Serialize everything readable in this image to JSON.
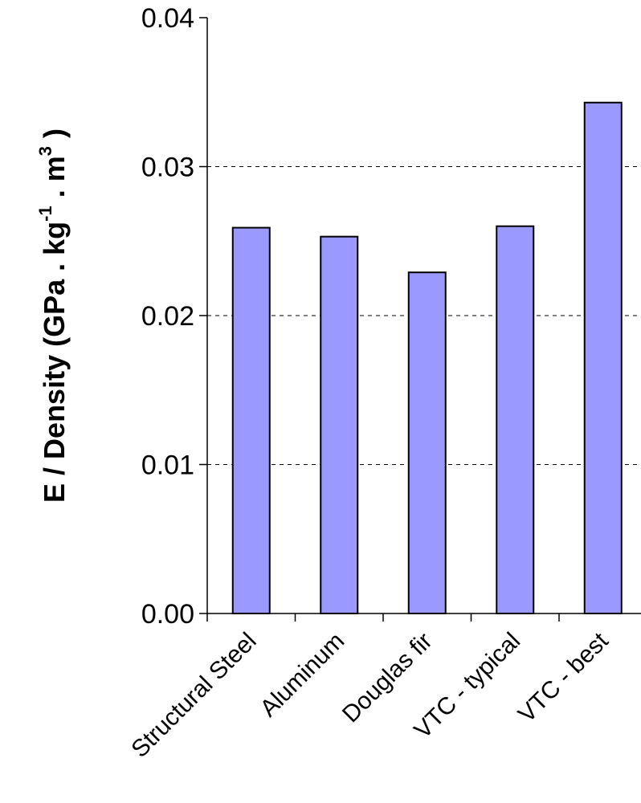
{
  "chart_data": {
    "type": "bar",
    "categories": [
      "Structural Steel",
      "Aluminum",
      "Douglas fir",
      "VTC - typical",
      "VTC - best"
    ],
    "values": [
      0.0259,
      0.0253,
      0.0229,
      0.026,
      0.0343
    ],
    "ylabel": {
      "main": "E / Density (GPa . kg",
      "exp1": "-1",
      "mid": " . m",
      "exp2": "3",
      "end": " )"
    },
    "ylim": [
      0,
      0.04
    ],
    "yticks": [
      "0.00",
      "0.01",
      "0.02",
      "0.03",
      "0.04"
    ],
    "ytick_values": [
      0,
      0.01,
      0.02,
      0.03,
      0.04
    ],
    "grid": true,
    "bar_color": "#9999ff",
    "bar_edge_color": "#000000"
  }
}
